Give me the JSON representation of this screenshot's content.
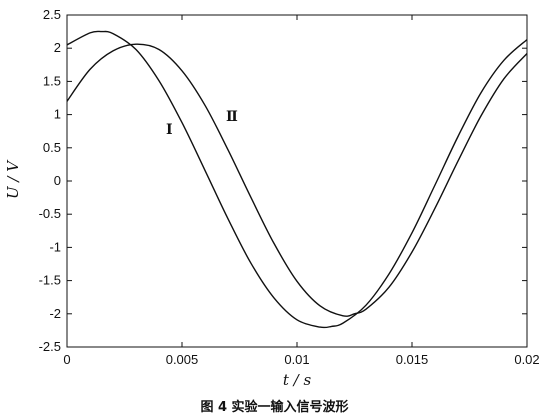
{
  "chart_data": {
    "type": "line",
    "caption": "图 4  实验一输入信号波形",
    "xlabel": "t / s",
    "ylabel": "U / V",
    "xlim": [
      0,
      0.02
    ],
    "ylim": [
      -2.5,
      2.5
    ],
    "x_ticks": [
      "0",
      "0.005",
      "0.01",
      "0.015",
      "0.02"
    ],
    "y_ticks": [
      "2.5",
      "2",
      "1.5",
      "1",
      "0.5",
      "0",
      "-0.5",
      "-1",
      "-1.5",
      "-2",
      "-2.5"
    ],
    "grid": false,
    "series": [
      {
        "name": "Ⅰ",
        "x": [
          0,
          0.001,
          0.0015,
          0.002,
          0.003,
          0.004,
          0.005,
          0.006,
          0.007,
          0.008,
          0.009,
          0.01,
          0.011,
          0.0115,
          0.012,
          0.013,
          0.014,
          0.015,
          0.016,
          0.017,
          0.018,
          0.019,
          0.02
        ],
        "y": [
          2.05,
          2.23,
          2.25,
          2.22,
          1.98,
          1.51,
          0.88,
          0.16,
          -0.57,
          -1.24,
          -1.76,
          -2.09,
          -2.2,
          -2.19,
          -2.14,
          -1.87,
          -1.4,
          -0.78,
          -0.06,
          0.67,
          1.33,
          1.82,
          2.13
        ]
      },
      {
        "name": "Ⅱ",
        "x": [
          0,
          0.001,
          0.002,
          0.003,
          0.004,
          0.005,
          0.006,
          0.007,
          0.008,
          0.009,
          0.01,
          0.011,
          0.012,
          0.0125,
          0.013,
          0.014,
          0.015,
          0.016,
          0.017,
          0.018,
          0.019,
          0.02
        ],
        "y": [
          1.2,
          1.68,
          1.96,
          2.06,
          1.98,
          1.66,
          1.14,
          0.47,
          -0.25,
          -0.94,
          -1.51,
          -1.88,
          -2.03,
          -2.0,
          -1.93,
          -1.6,
          -1.07,
          -0.41,
          0.3,
          0.98,
          1.54,
          1.92
        ]
      }
    ]
  }
}
